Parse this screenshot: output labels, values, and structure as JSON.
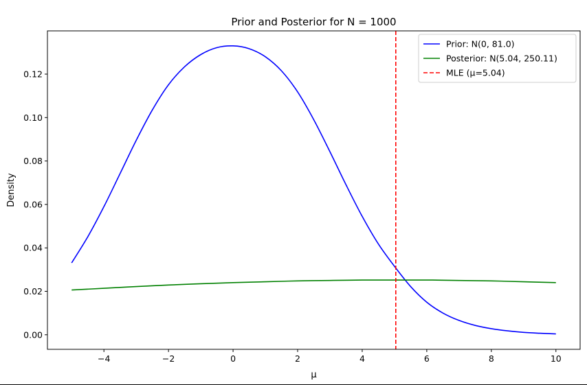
{
  "chart_data": {
    "type": "line",
    "title": "Prior and Posterior for N = 1000",
    "xlabel": "μ",
    "ylabel": "Density",
    "xlim": [
      -5.75,
      10.75
    ],
    "ylim": [
      -0.0067,
      0.1399
    ],
    "x_ticks": [
      -4,
      -2,
      0,
      2,
      4,
      6,
      8,
      10
    ],
    "x_tick_labels": [
      "−4",
      "−2",
      "0",
      "2",
      "4",
      "6",
      "8",
      "10"
    ],
    "y_ticks": [
      0.0,
      0.02,
      0.04,
      0.06,
      0.08,
      0.1,
      0.12
    ],
    "y_tick_labels": [
      "0.00",
      "0.02",
      "0.04",
      "0.06",
      "0.08",
      "0.10",
      "0.12"
    ],
    "grid": false,
    "legend_position": "top-right",
    "series": [
      {
        "name": "Prior: N(0, 81.0)",
        "color": "#0000ff",
        "style": "solid",
        "x": [
          -5,
          -4.5,
          -4,
          -3.5,
          -3,
          -2.5,
          -2,
          -1.5,
          -1,
          -0.5,
          0,
          0.5,
          1,
          1.5,
          2,
          2.5,
          3,
          3.5,
          4,
          4.5,
          5,
          5.5,
          6,
          6.5,
          7,
          7.5,
          8,
          8.5,
          9,
          9.5,
          10
        ],
        "y": [
          0.0331,
          0.0451,
          0.059,
          0.0742,
          0.0895,
          0.1035,
          0.1151,
          0.1234,
          0.129,
          0.1322,
          0.133,
          0.1317,
          0.128,
          0.1215,
          0.1118,
          0.099,
          0.0843,
          0.069,
          0.0545,
          0.0418,
          0.0315,
          0.0222,
          0.015,
          0.01,
          0.0066,
          0.0043,
          0.0028,
          0.0018,
          0.0011,
          0.0007,
          0.0004
        ]
      },
      {
        "name": "Posterior: N(5.04, 250.11)",
        "color": "#008000",
        "style": "solid",
        "x": [
          -5,
          -4,
          -3,
          -2,
          -1,
          0,
          1,
          2,
          3,
          4,
          5,
          6,
          7,
          8,
          9,
          10
        ],
        "y": [
          0.0206,
          0.0214,
          0.0222,
          0.0229,
          0.0235,
          0.024,
          0.0244,
          0.0248,
          0.025,
          0.0252,
          0.0252,
          0.0252,
          0.025,
          0.0248,
          0.0244,
          0.024
        ]
      }
    ],
    "vlines": [
      {
        "name": "MLE (μ=5.04)",
        "x": 5.04,
        "color": "#ff0000",
        "style": "dashed"
      }
    ]
  }
}
